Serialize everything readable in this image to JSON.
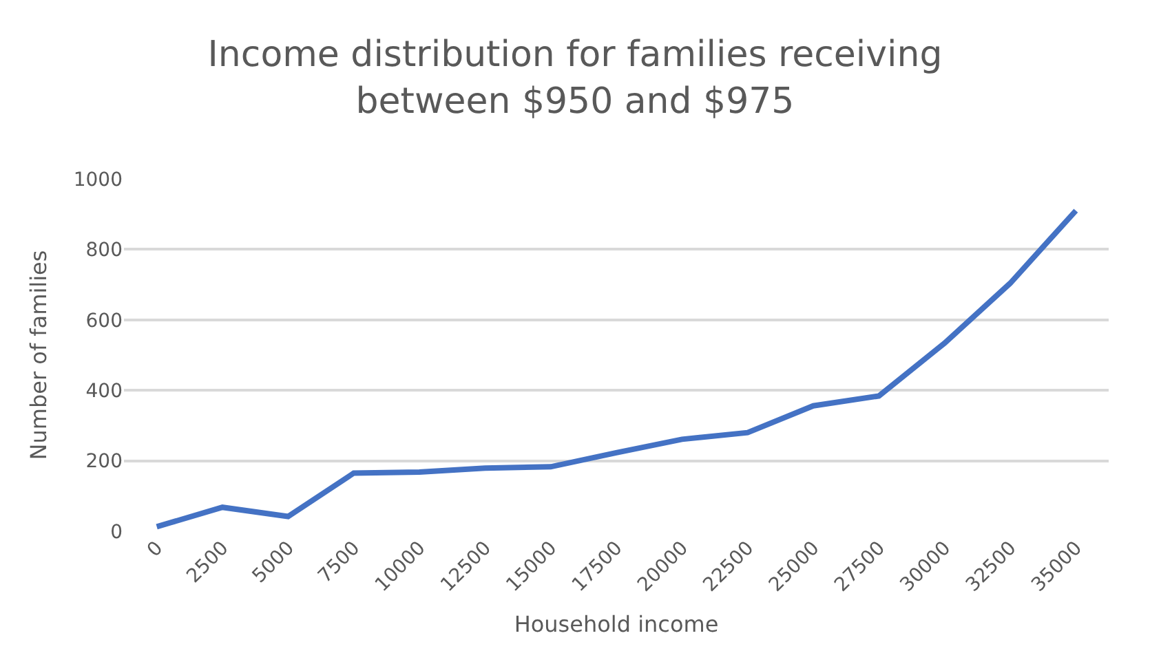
{
  "chart_data": {
    "type": "line",
    "title": "Income distribution for families receiving between $950 and $975",
    "xlabel": "Household income",
    "ylabel": "Number of families",
    "categories": [
      "0",
      "2500",
      "5000",
      "7500",
      "10000",
      "12500",
      "15000",
      "17500",
      "20000",
      "22500",
      "25000",
      "27500",
      "30000",
      "32500",
      "35000"
    ],
    "series": [
      {
        "color": "#4472c4",
        "values": [
          13,
          68,
          42,
          165,
          168,
          179,
          183,
          223,
          261,
          280,
          356,
          384,
          534,
          704,
          910
        ]
      }
    ],
    "ylim": [
      0,
      1000
    ],
    "yticks": [
      0,
      200,
      400,
      600,
      800,
      1000
    ],
    "grid": "y",
    "legend": false,
    "marker": "none",
    "line_style": "solid"
  }
}
